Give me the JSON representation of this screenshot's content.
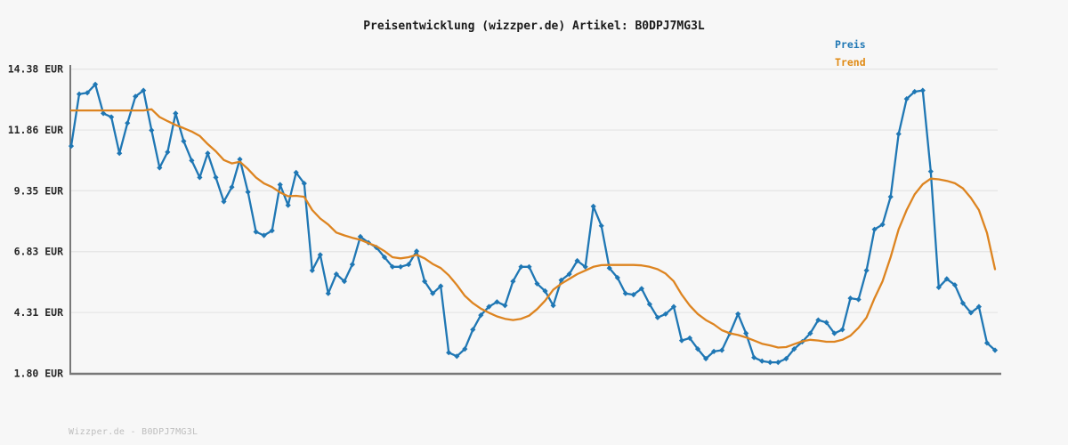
{
  "page": {
    "title": "Preisentwicklung (wizzper.de) Artikel: B0DPJ7MG3L",
    "watermark": "Wizzper.de - B0DPJ7MG3L"
  },
  "legend": {
    "position": "top-right",
    "items": [
      {
        "label": "Preis",
        "color": "#1f77b4"
      },
      {
        "label": "Trend",
        "color": "#e08a14"
      }
    ]
  },
  "colors": {
    "background": "#f7f7f7",
    "grid": "#e6e6e6",
    "axis": "#787878",
    "title_text": "#1a1a1a",
    "tick_text": "#262626",
    "watermark_text": "#bdbdbd",
    "price_line": "#1f77b4",
    "trend_line": "#dd8420"
  },
  "chart_data": {
    "type": "line",
    "title": "Preisentwicklung (wizzper.de) Artikel: B0DPJ7MG3L",
    "xlabel": "",
    "ylabel": "EUR",
    "ylim": [
      1.8,
      14.38
    ],
    "yticks": [
      "14.38 EUR",
      "11.86 EUR",
      "9.35 EUR",
      "6.83 EUR",
      "4.31 EUR",
      "1.80 EUR"
    ],
    "ytick_values": [
      14.38,
      11.86,
      9.35,
      6.83,
      4.31,
      1.8
    ],
    "x_axis_tick_labels": [],
    "grid": "horizontal",
    "legend_position": "top-right",
    "series": [
      {
        "name": "Preis",
        "color": "#1f77b4",
        "marker": "diamond",
        "values": [
          11.2,
          13.35,
          13.4,
          13.75,
          12.55,
          12.4,
          10.9,
          12.15,
          13.25,
          13.5,
          11.85,
          10.3,
          10.95,
          12.55,
          11.4,
          10.6,
          9.9,
          10.9,
          9.9,
          8.9,
          9.5,
          10.65,
          9.3,
          7.65,
          7.5,
          7.7,
          9.6,
          8.75,
          10.1,
          9.65,
          6.05,
          6.7,
          5.1,
          5.9,
          5.6,
          6.3,
          7.45,
          7.2,
          7.0,
          6.6,
          6.2,
          6.2,
          6.3,
          6.85,
          5.6,
          5.1,
          5.4,
          2.65,
          2.5,
          2.8,
          3.6,
          4.2,
          4.55,
          4.75,
          4.6,
          5.6,
          6.2,
          6.2,
          5.5,
          5.2,
          4.6,
          5.65,
          5.9,
          6.45,
          6.2,
          8.7,
          7.9,
          6.15,
          5.75,
          5.1,
          5.05,
          5.3,
          4.65,
          4.1,
          4.25,
          4.55,
          3.15,
          3.25,
          2.8,
          2.4,
          2.7,
          2.75,
          3.45,
          4.25,
          3.45,
          2.45,
          2.3,
          2.25,
          2.25,
          2.4,
          2.8,
          3.1,
          3.45,
          4.0,
          3.9,
          3.45,
          3.6,
          4.9,
          4.85,
          6.05,
          7.75,
          7.95,
          9.1,
          11.7,
          13.15,
          13.45,
          13.5,
          10.15,
          5.35,
          5.7,
          5.45,
          4.7,
          4.3,
          4.55,
          3.05,
          2.75
        ]
      },
      {
        "name": "Trend",
        "color": "#dd8420",
        "marker": "none",
        "values": [
          12.67,
          12.67,
          12.67,
          12.67,
          12.67,
          12.67,
          12.67,
          12.67,
          12.67,
          12.67,
          12.72,
          12.4,
          12.23,
          12.07,
          11.94,
          11.8,
          11.62,
          11.28,
          10.98,
          10.62,
          10.48,
          10.55,
          10.25,
          9.9,
          9.65,
          9.5,
          9.28,
          9.12,
          9.14,
          9.1,
          8.55,
          8.2,
          7.95,
          7.62,
          7.5,
          7.4,
          7.32,
          7.18,
          7.05,
          6.85,
          6.6,
          6.55,
          6.6,
          6.7,
          6.55,
          6.32,
          6.15,
          5.85,
          5.45,
          5.0,
          4.7,
          4.47,
          4.3,
          4.15,
          4.05,
          4.0,
          4.05,
          4.18,
          4.45,
          4.8,
          5.25,
          5.5,
          5.7,
          5.9,
          6.05,
          6.2,
          6.27,
          6.28,
          6.28,
          6.28,
          6.28,
          6.26,
          6.2,
          6.1,
          5.92,
          5.6,
          5.05,
          4.6,
          4.25,
          4.0,
          3.82,
          3.58,
          3.45,
          3.38,
          3.28,
          3.15,
          3.02,
          2.95,
          2.86,
          2.88,
          3.0,
          3.12,
          3.18,
          3.15,
          3.1,
          3.1,
          3.18,
          3.35,
          3.68,
          4.1,
          4.9,
          5.6,
          6.6,
          7.75,
          8.55,
          9.2,
          9.62,
          9.85,
          9.82,
          9.76,
          9.66,
          9.45,
          9.05,
          8.55,
          7.6,
          6.1
        ]
      }
    ]
  }
}
